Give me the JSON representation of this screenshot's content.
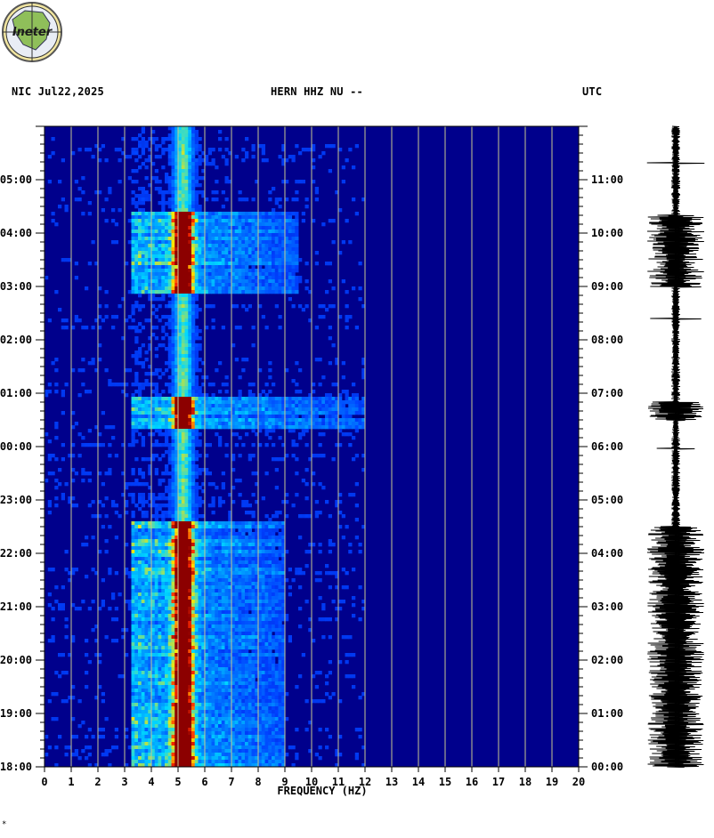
{
  "header": {
    "left": "NIC  Jul22,2025",
    "center": "HERN HHZ NU --",
    "right": "UTC"
  },
  "logo": {
    "text": "Ineter",
    "icon": "ineter-logo"
  },
  "footnote": "*",
  "colors": {
    "background_low": "#00008c",
    "mid": "#0040ff",
    "cyan": "#00d8ff",
    "yellow": "#ffe600",
    "high": "#8c0000",
    "grid": "#c8c890",
    "waveform": "#000000"
  },
  "chart_data": {
    "type": "heatmap",
    "title": "HERN HHZ NU --",
    "xlabel": "FREQUENCY (HZ)",
    "xlim": [
      0,
      20
    ],
    "x_ticks": [
      "0",
      "1",
      "2",
      "3",
      "4",
      "5",
      "6",
      "7",
      "8",
      "9",
      "10",
      "11",
      "12",
      "13",
      "14",
      "15",
      "16",
      "17",
      "18",
      "19",
      "20"
    ],
    "left_axis_ticks": [
      "05:00",
      "04:00",
      "03:00",
      "02:00",
      "01:00",
      "00:00",
      "23:00",
      "22:00",
      "21:00",
      "20:00",
      "19:00",
      "18:00"
    ],
    "right_axis_ticks": [
      "11:00",
      "10:00",
      "09:00",
      "08:00",
      "07:00",
      "06:00",
      "05:00",
      "04:00",
      "03:00",
      "02:00",
      "01:00",
      "00:00"
    ],
    "left_axis_zone": "NIC",
    "right_axis_zone": "UTC",
    "dominant_frequency_hz": 5.2,
    "activity_bursts": [
      {
        "local_time": "03:00-04:20",
        "utc_time": "09:00-10:20",
        "max_freq_hz": 9.5,
        "intensity": "high"
      },
      {
        "local_time": "00:30-00:50",
        "utc_time": "06:30-06:50",
        "max_freq_hz": 12,
        "intensity": "high"
      },
      {
        "local_time": "18:00-22:30",
        "utc_time": "00:00-04:30",
        "max_freq_hz": 9,
        "intensity": "high"
      }
    ],
    "has_waveform_trace": true
  }
}
